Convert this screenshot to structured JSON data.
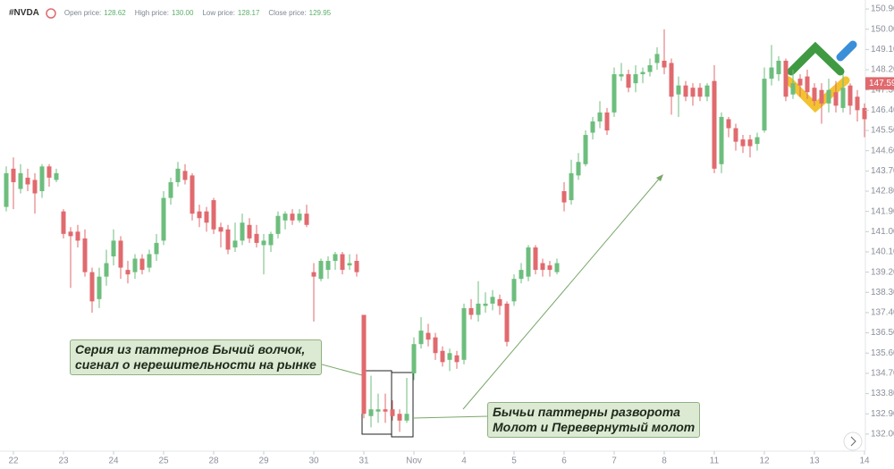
{
  "chart_data": {
    "type": "candlestick",
    "symbol": "#NVDA",
    "header": [
      {
        "label": "Open price:",
        "value": "128.62"
      },
      {
        "label": "High price:",
        "value": "130.00"
      },
      {
        "label": "Low price:",
        "value": "128.17"
      },
      {
        "label": "Close price:",
        "value": "129.95"
      }
    ],
    "up_color": "#6dbe7d",
    "down_color": "#e06a6e",
    "open": [
      142.1,
      143.8,
      142.9,
      143.4,
      143.3,
      142.8,
      143.9,
      143.3,
      141.9,
      141.0,
      141.0,
      140.7,
      139.2,
      138.0,
      139.0,
      139.9,
      140.6,
      139.3,
      139.2,
      139.8,
      139.4,
      140.0,
      140.6,
      142.5,
      143.2,
      143.7,
      143.5,
      141.9,
      141.9,
      142.4,
      141.2,
      141.1,
      140.3,
      140.6,
      141.3,
      140.9,
      140.4,
      140.4,
      140.9,
      141.5,
      141.8,
      141.5,
      141.8,
      139.2,
      138.9,
      139.3,
      139.7,
      140.0,
      139.5,
      139.7,
      137.3,
      132.8,
      133.0,
      133.1,
      133.1,
      132.9,
      132.6,
      134.7,
      136.0,
      136.5,
      136.3,
      135.7,
      135.3,
      135.5,
      135.3,
      137.6,
      137.3,
      137.7,
      137.8,
      138.0,
      137.8,
      137.9,
      138.9,
      139.0,
      140.3,
      139.6,
      139.5,
      139.2,
      142.8,
      142.4,
      143.5,
      144.0,
      145.4,
      145.9,
      146.3,
      146.3,
      147.9,
      148.0,
      147.6,
      148.0,
      148.1,
      148.5,
      148.6,
      148.5,
      147.1,
      147.5,
      147.4,
      147.4,
      147.0,
      147.7,
      144.0,
      146.0,
      145.6,
      145.1,
      145.1,
      144.9,
      145.5,
      147.8,
      148.0,
      148.6,
      147.1,
      147.8,
      147.9,
      147.4,
      147.3,
      146.7,
      147.2,
      146.5,
      147.5,
      147.0,
      146.5
    ],
    "high": [
      143.9,
      144.3,
      144.0,
      143.8,
      143.6,
      144.0,
      144.0,
      143.8,
      142.0,
      141.2,
      141.3,
      141.1,
      139.4,
      139.4,
      140.2,
      141.1,
      140.8,
      139.7,
      140.0,
      140.0,
      140.2,
      140.9,
      142.8,
      143.4,
      144.1,
      144.0,
      143.6,
      142.2,
      142.1,
      142.5,
      141.4,
      141.3,
      141.4,
      141.8,
      141.6,
      141.3,
      140.9,
      141.0,
      141.9,
      141.9,
      142.0,
      142.0,
      142.2,
      139.6,
      139.8,
      139.9,
      140.1,
      140.1,
      140.0,
      140.0,
      137.3,
      134.6,
      133.8,
      133.8,
      133.5,
      133.1,
      134.5,
      136.3,
      137.2,
      136.9,
      136.5,
      135.9,
      135.8,
      135.7,
      137.8,
      138.0,
      138.8,
      138.3,
      138.4,
      138.2,
      137.9,
      139.1,
      139.6,
      140.4,
      140.4,
      139.8,
      139.7,
      139.8,
      143.2,
      144.2,
      144.5,
      145.5,
      146.1,
      146.8,
      146.5,
      148.3,
      148.5,
      148.2,
      148.4,
      148.3,
      148.7,
      149.2,
      150.0,
      148.7,
      147.9,
      147.7,
      147.6,
      147.6,
      147.6,
      148.4,
      146.3,
      146.1,
      145.8,
      145.3,
      145.3,
      145.4,
      148.3,
      149.3,
      148.8,
      148.7,
      148.2,
      148.0,
      148.2,
      147.6,
      147.6,
      147.8,
      147.7,
      148.0,
      147.6,
      147.3,
      146.7
    ],
    "low": [
      141.9,
      142.0,
      142.7,
      142.8,
      141.8,
      142.5,
      143.0,
      143.2,
      140.7,
      138.5,
      140.3,
      139.0,
      137.4,
      137.6,
      138.6,
      139.5,
      138.9,
      138.7,
      138.9,
      139.1,
      139.2,
      139.7,
      140.4,
      142.2,
      143.0,
      143.1,
      141.5,
      141.2,
      141.0,
      140.9,
      140.3,
      140.0,
      140.1,
      140.4,
      140.5,
      140.3,
      139.1,
      140.1,
      140.7,
      141.1,
      141.3,
      141.4,
      141.2,
      137.0,
      138.8,
      138.9,
      139.3,
      139.1,
      139.3,
      139.0,
      132.7,
      132.3,
      132.5,
      132.5,
      132.6,
      132.1,
      132.5,
      134.4,
      135.8,
      135.9,
      135.3,
      135.0,
      134.8,
      134.9,
      135.1,
      137.1,
      137.0,
      137.4,
      137.5,
      137.3,
      135.9,
      137.7,
      138.7,
      138.8,
      139.1,
      139.0,
      139.0,
      139.1,
      141.9,
      142.2,
      143.3,
      143.9,
      145.1,
      145.6,
      145.3,
      146.1,
      147.7,
      147.2,
      147.2,
      147.6,
      147.9,
      148.2,
      148.0,
      146.2,
      146.1,
      146.8,
      146.6,
      146.8,
      146.8,
      143.6,
      143.6,
      145.2,
      144.6,
      144.5,
      144.3,
      144.6,
      145.4,
      147.5,
      147.7,
      146.8,
      146.9,
      147.0,
      146.9,
      146.6,
      145.8,
      146.3,
      146.3,
      146.3,
      146.2,
      145.9,
      145.2
    ],
    "close": [
      143.6,
      143.2,
      143.6,
      143.1,
      142.7,
      143.9,
      143.4,
      143.6,
      140.9,
      140.8,
      140.6,
      139.2,
      137.9,
      139.0,
      139.6,
      140.6,
      139.4,
      139.1,
      139.8,
      139.3,
      140.0,
      140.5,
      142.5,
      143.2,
      143.8,
      143.3,
      141.8,
      141.6,
      141.4,
      141.1,
      141.0,
      140.2,
      140.6,
      141.4,
      140.7,
      140.5,
      140.6,
      140.9,
      141.7,
      141.8,
      141.5,
      141.8,
      141.3,
      139.0,
      139.7,
      139.7,
      140.0,
      139.3,
      139.6,
      139.2,
      132.9,
      133.1,
      133.1,
      133.0,
      132.8,
      132.6,
      132.9,
      136.0,
      136.6,
      136.2,
      135.6,
      135.2,
      135.6,
      135.2,
      137.6,
      137.3,
      137.8,
      137.8,
      138.1,
      137.7,
      136.1,
      138.9,
      139.3,
      140.3,
      139.3,
      139.3,
      139.3,
      139.6,
      142.3,
      143.6,
      144.1,
      145.3,
      145.9,
      146.3,
      145.5,
      148.0,
      148.0,
      147.4,
      148.0,
      148.1,
      148.4,
      148.9,
      148.3,
      147.0,
      147.5,
      147.0,
      147.0,
      147.0,
      147.5,
      143.8,
      146.1,
      145.6,
      145.0,
      144.8,
      144.8,
      145.2,
      147.8,
      148.3,
      148.6,
      147.0,
      147.6,
      147.5,
      147.2,
      146.8,
      146.7,
      147.3,
      146.6,
      147.4,
      146.6,
      146.4,
      146.0
    ],
    "xlim": [
      -0.875,
      120.125
    ],
    "xticks": [
      {
        "value": 1,
        "label": "22"
      },
      {
        "value": 8,
        "label": "23"
      },
      {
        "value": 15,
        "label": "24"
      },
      {
        "value": 22,
        "label": "25"
      },
      {
        "value": 29,
        "label": "28"
      },
      {
        "value": 36,
        "label": "29"
      },
      {
        "value": 43,
        "label": "30"
      },
      {
        "value": 50,
        "label": "31"
      },
      {
        "value": 57,
        "label": "Nov"
      },
      {
        "value": 64,
        "label": "4"
      },
      {
        "value": 71,
        "label": "5"
      },
      {
        "value": 78,
        "label": "6"
      },
      {
        "value": 85,
        "label": "7"
      },
      {
        "value": 92,
        "label": "8"
      },
      {
        "value": 99,
        "label": "11"
      },
      {
        "value": 106,
        "label": "12"
      },
      {
        "value": 113,
        "label": "13"
      },
      {
        "value": 120,
        "label": "14"
      }
    ],
    "ylim": [
      131.44,
      151.3
    ],
    "yticks": [
      {
        "value": 150.9,
        "label": "150.90"
      },
      {
        "value": 150,
        "label": "150.00"
      },
      {
        "value": 149.1,
        "label": "149.10"
      },
      {
        "value": 148.2,
        "label": "148.20"
      },
      {
        "value": 147.3,
        "label": "147.30"
      },
      {
        "value": 146.4,
        "label": "146.40"
      },
      {
        "value": 145.5,
        "label": "145.50"
      },
      {
        "value": 144.6,
        "label": "144.60"
      },
      {
        "value": 143.7,
        "label": "143.70"
      },
      {
        "value": 142.8,
        "label": "142.80"
      },
      {
        "value": 141.9,
        "label": "141.90"
      },
      {
        "value": 141,
        "label": "141.00"
      },
      {
        "value": 140.1,
        "label": "140.10"
      },
      {
        "value": 139.2,
        "label": "139.20"
      },
      {
        "value": 138.3,
        "label": "138.30"
      },
      {
        "value": 137.4,
        "label": "137.40"
      },
      {
        "value": 136.5,
        "label": "136.50"
      },
      {
        "value": 135.6,
        "label": "135.60"
      },
      {
        "value": 134.7,
        "label": "134.70"
      },
      {
        "value": 133.8,
        "label": "133.80"
      },
      {
        "value": 132.9,
        "label": "132.90"
      },
      {
        "value": 132,
        "label": "132.00"
      }
    ],
    "current_price": {
      "value": 147.59,
      "color": "#e06a6e"
    },
    "annotations": [
      {
        "lines": [
          "Серия из паттернов Бычий волчок,",
          "сигнал о нерешительности на рынке"
        ]
      },
      {
        "lines": [
          "Бычьи паттерны разворота",
          "Молот и Перевернутый молот"
        ]
      }
    ]
  }
}
